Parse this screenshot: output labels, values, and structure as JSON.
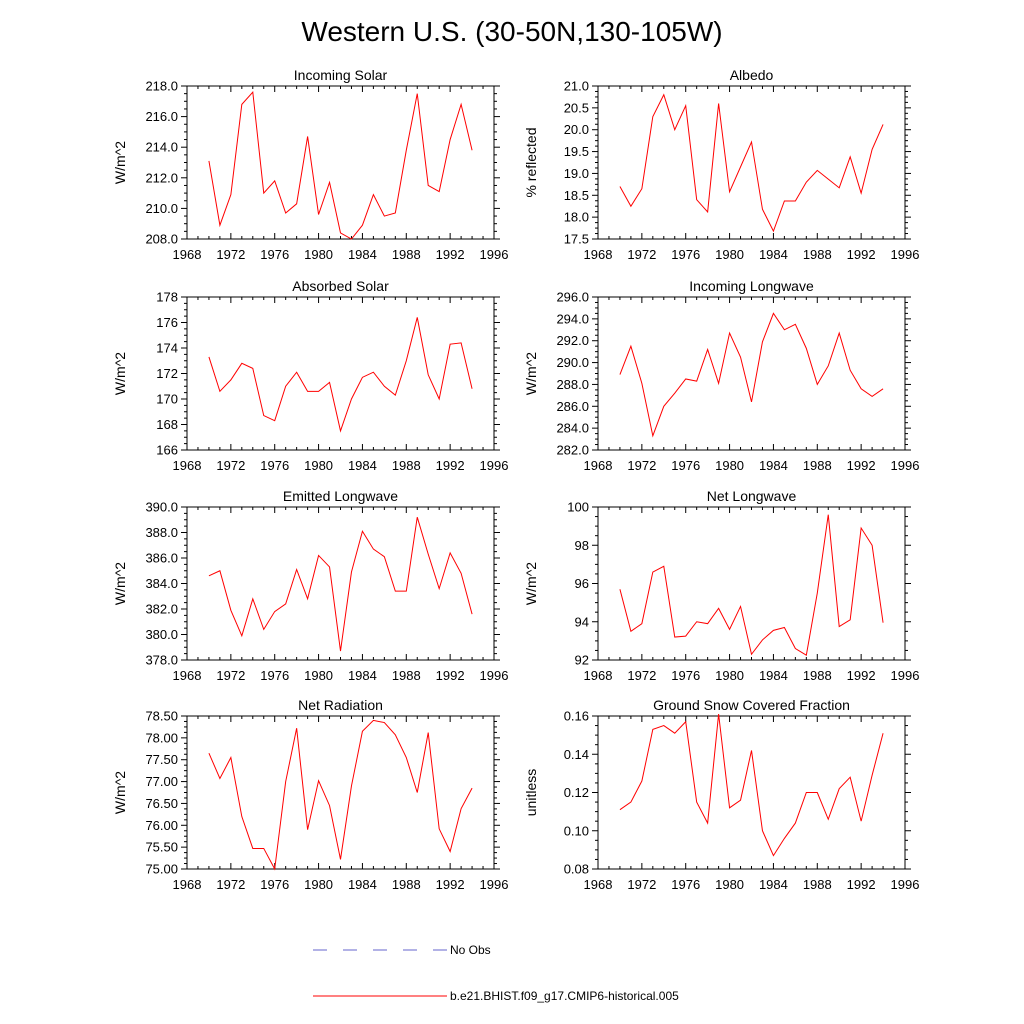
{
  "title": "Western U.S. (30-50N,130-105W)",
  "series_color": "#ff0000",
  "obs_color": "#6666cc",
  "legend": {
    "obs_label": "No Obs",
    "model_label": "b.e21.BHIST.f09_g17.CMIP6-historical.005"
  },
  "chart_data": [
    {
      "type": "line",
      "title": "Incoming Solar",
      "ylabel": "W/m^2",
      "xlim": [
        1968,
        1996
      ],
      "xticks": [
        1968,
        1972,
        1976,
        1980,
        1984,
        1988,
        1992,
        1996
      ],
      "ylim": [
        208.0,
        218.0
      ],
      "yticks": [
        "208.0",
        "210.0",
        "212.0",
        "214.0",
        "216.0",
        "218.0"
      ],
      "x": [
        1970,
        1971,
        1972,
        1973,
        1974,
        1975,
        1976,
        1977,
        1978,
        1979,
        1980,
        1981,
        1982,
        1983,
        1984,
        1985,
        1986,
        1987,
        1988,
        1989,
        1990,
        1991,
        1992,
        1993,
        1994
      ],
      "values": [
        213.1,
        208.9,
        210.9,
        216.8,
        217.6,
        211.0,
        211.8,
        209.7,
        210.3,
        214.7,
        209.6,
        211.7,
        208.4,
        208.0,
        208.9,
        210.9,
        209.5,
        209.7,
        213.8,
        217.5,
        211.5,
        211.1,
        214.5,
        216.8,
        213.8
      ]
    },
    {
      "type": "line",
      "title": "Albedo",
      "ylabel": "% reflected",
      "xlim": [
        1968,
        1996
      ],
      "xticks": [
        1968,
        1972,
        1976,
        1980,
        1984,
        1988,
        1992,
        1996
      ],
      "ylim": [
        17.5,
        21.0
      ],
      "yticks": [
        "17.5",
        "18.0",
        "18.5",
        "19.0",
        "19.5",
        "20.0",
        "20.5",
        "21.0"
      ],
      "x": [
        1970,
        1971,
        1972,
        1973,
        1974,
        1975,
        1976,
        1977,
        1978,
        1979,
        1980,
        1981,
        1982,
        1983,
        1984,
        1985,
        1986,
        1987,
        1988,
        1989,
        1990,
        1991,
        1992,
        1993,
        1994
      ],
      "values": [
        18.7,
        18.25,
        18.65,
        20.3,
        20.8,
        20.0,
        20.55,
        18.4,
        18.12,
        20.6,
        18.58,
        19.15,
        19.72,
        18.18,
        17.68,
        18.37,
        18.37,
        18.8,
        19.07,
        18.87,
        18.67,
        19.38,
        18.55,
        19.55,
        20.12
      ]
    },
    {
      "type": "line",
      "title": "Absorbed Solar",
      "ylabel": "W/m^2",
      "xlim": [
        1968,
        1996
      ],
      "xticks": [
        1968,
        1972,
        1976,
        1980,
        1984,
        1988,
        1992,
        1996
      ],
      "ylim": [
        166,
        178
      ],
      "yticks": [
        "166",
        "168",
        "170",
        "172",
        "174",
        "176",
        "178"
      ],
      "x": [
        1970,
        1971,
        1972,
        1973,
        1974,
        1975,
        1976,
        1977,
        1978,
        1979,
        1980,
        1981,
        1982,
        1983,
        1984,
        1985,
        1986,
        1987,
        1988,
        1989,
        1990,
        1991,
        1992,
        1993,
        1994
      ],
      "values": [
        173.3,
        170.6,
        171.5,
        172.8,
        172.4,
        168.7,
        168.3,
        171.0,
        172.1,
        170.6,
        170.6,
        171.3,
        167.5,
        170.0,
        171.7,
        172.1,
        171.0,
        170.3,
        173.0,
        176.4,
        171.9,
        170.0,
        174.3,
        174.4,
        170.8
      ]
    },
    {
      "type": "line",
      "title": "Incoming Longwave",
      "ylabel": "W/m^2",
      "xlim": [
        1968,
        1996
      ],
      "xticks": [
        1968,
        1972,
        1976,
        1980,
        1984,
        1988,
        1992,
        1996
      ],
      "ylim": [
        282.0,
        296.0
      ],
      "yticks": [
        "282.0",
        "284.0",
        "286.0",
        "288.0",
        "290.0",
        "292.0",
        "294.0",
        "296.0"
      ],
      "x": [
        1970,
        1971,
        1972,
        1973,
        1974,
        1975,
        1976,
        1977,
        1978,
        1979,
        1980,
        1981,
        1982,
        1983,
        1984,
        1985,
        1986,
        1987,
        1988,
        1989,
        1990,
        1991,
        1992,
        1993,
        1994
      ],
      "values": [
        288.9,
        291.5,
        288.1,
        283.3,
        286.0,
        287.2,
        288.5,
        288.3,
        291.2,
        288.1,
        292.7,
        290.5,
        286.4,
        291.9,
        294.5,
        293.0,
        293.5,
        291.3,
        288.0,
        289.7,
        292.7,
        289.3,
        287.6,
        286.9,
        287.6
      ]
    },
    {
      "type": "line",
      "title": "Emitted Longwave",
      "ylabel": "W/m^2",
      "xlim": [
        1968,
        1996
      ],
      "xticks": [
        1968,
        1972,
        1976,
        1980,
        1984,
        1988,
        1992,
        1996
      ],
      "ylim": [
        378.0,
        390.0
      ],
      "yticks": [
        "378.0",
        "380.0",
        "382.0",
        "384.0",
        "386.0",
        "388.0",
        "390.0"
      ],
      "x": [
        1970,
        1971,
        1972,
        1973,
        1974,
        1975,
        1976,
        1977,
        1978,
        1979,
        1980,
        1981,
        1982,
        1983,
        1984,
        1985,
        1986,
        1987,
        1988,
        1989,
        1990,
        1991,
        1992,
        1993,
        1994
      ],
      "values": [
        384.6,
        385.0,
        381.9,
        379.9,
        382.8,
        380.4,
        381.8,
        382.4,
        385.1,
        382.8,
        386.2,
        385.3,
        378.7,
        384.9,
        388.1,
        386.7,
        386.1,
        383.4,
        383.4,
        389.2,
        386.3,
        383.6,
        386.4,
        384.8,
        381.6
      ]
    },
    {
      "type": "line",
      "title": "Net Longwave",
      "ylabel": "W/m^2",
      "xlim": [
        1968,
        1996
      ],
      "xticks": [
        1968,
        1972,
        1976,
        1980,
        1984,
        1988,
        1992,
        1996
      ],
      "ylim": [
        92,
        100
      ],
      "yticks": [
        "92",
        "94",
        "96",
        "98",
        "100"
      ],
      "x": [
        1970,
        1971,
        1972,
        1973,
        1974,
        1975,
        1976,
        1977,
        1978,
        1979,
        1980,
        1981,
        1982,
        1983,
        1984,
        1985,
        1986,
        1987,
        1988,
        1989,
        1990,
        1991,
        1992,
        1993,
        1994
      ],
      "values": [
        95.7,
        93.5,
        93.9,
        96.6,
        96.9,
        93.2,
        93.25,
        94.0,
        93.9,
        94.7,
        93.6,
        94.8,
        92.3,
        93.05,
        93.55,
        93.7,
        92.6,
        92.25,
        95.5,
        99.6,
        93.75,
        94.1,
        98.9,
        98.0,
        93.95
      ]
    },
    {
      "type": "line",
      "title": "Net Radiation",
      "ylabel": "W/m^2",
      "xlim": [
        1968,
        1996
      ],
      "xticks": [
        1968,
        1972,
        1976,
        1980,
        1984,
        1988,
        1992,
        1996
      ],
      "ylim": [
        75.0,
        78.5
      ],
      "yticks": [
        "75.00",
        "75.50",
        "76.00",
        "76.50",
        "77.00",
        "77.50",
        "78.00",
        "78.50"
      ],
      "x": [
        1970,
        1971,
        1972,
        1973,
        1974,
        1975,
        1976,
        1977,
        1978,
        1979,
        1980,
        1981,
        1982,
        1983,
        1984,
        1985,
        1986,
        1987,
        1988,
        1989,
        1990,
        1991,
        1992,
        1993,
        1994
      ],
      "values": [
        77.65,
        77.07,
        77.55,
        76.2,
        75.47,
        75.47,
        75.0,
        77.0,
        78.22,
        75.9,
        77.02,
        76.45,
        75.22,
        76.9,
        78.15,
        78.4,
        78.35,
        78.07,
        77.55,
        76.75,
        78.12,
        75.92,
        75.4,
        76.38,
        76.85
      ]
    },
    {
      "type": "line",
      "title": "Ground Snow Covered Fraction",
      "ylabel": "unitless",
      "xlim": [
        1968,
        1996
      ],
      "xticks": [
        1968,
        1972,
        1976,
        1980,
        1984,
        1988,
        1992,
        1996
      ],
      "ylim": [
        0.08,
        0.16
      ],
      "yticks": [
        "0.08",
        "0.10",
        "0.12",
        "0.14",
        "0.16"
      ],
      "x": [
        1970,
        1971,
        1972,
        1973,
        1974,
        1975,
        1976,
        1977,
        1978,
        1979,
        1980,
        1981,
        1982,
        1983,
        1984,
        1985,
        1986,
        1987,
        1988,
        1989,
        1990,
        1991,
        1992,
        1993,
        1994
      ],
      "values": [
        0.111,
        0.115,
        0.126,
        0.153,
        0.155,
        0.151,
        0.157,
        0.115,
        0.104,
        0.161,
        0.112,
        0.116,
        0.142,
        0.1,
        0.087,
        0.096,
        0.104,
        0.12,
        0.12,
        0.106,
        0.122,
        0.128,
        0.105,
        0.129,
        0.151
      ]
    }
  ]
}
